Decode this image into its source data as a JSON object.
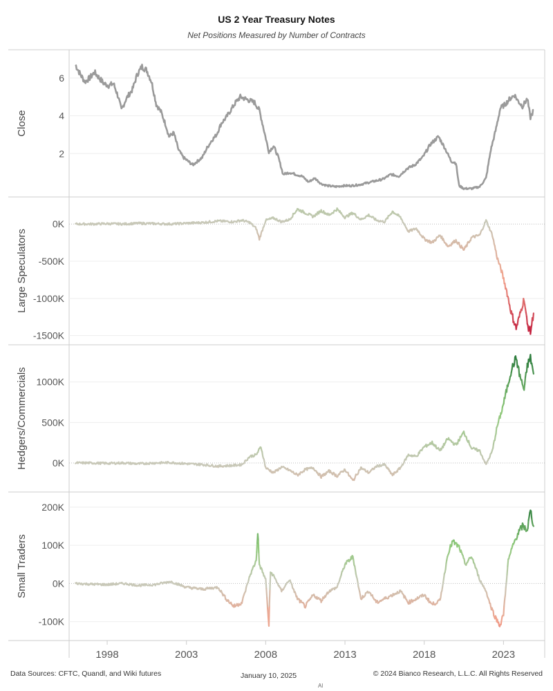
{
  "title": "US 2 Year Treasury Notes",
  "subtitle": "Net Positions Measured by Number of Contracts",
  "footer": {
    "sources": "Data Sources: CFTC, Quandl, and Wiki futures",
    "date": "January 10, 2025",
    "copyright": "© 2024 Bianco Research, L.L.C. All Rights Reserved",
    "mark": "Al"
  },
  "colors": {
    "close_line": "#9a9a9a",
    "neutral": "#c8c8b8",
    "positive_light": "#8fc97a",
    "positive_dark": "#2e7d3e",
    "negative_light": "#f2a28c",
    "negative_dark": "#c0193a",
    "grid": "#eeeeee",
    "border": "#cccccc"
  },
  "chart_data": {
    "type": "line",
    "x_tick_labels": [
      "1998",
      "2003",
      "2008",
      "2013",
      "2018",
      "2023"
    ],
    "x_ticks": [
      1998,
      2003,
      2008,
      2013,
      2018,
      2023
    ],
    "xlim": [
      1995.6,
      2025.6
    ],
    "panels": [
      {
        "ylabel": "Close",
        "color_mode": "fixed",
        "ylim": [
          0,
          7.2
        ],
        "y_ticks": [
          2,
          4,
          6
        ],
        "y_tick_labels": [
          "2",
          "4",
          "6"
        ],
        "series": [
          {
            "x": [
              1996.0,
              1996.3,
              1996.6,
              1996.9,
              1997.2,
              1997.5,
              1997.8,
              1998.1,
              1998.4,
              1998.7,
              1998.9,
              1999.2,
              1999.6,
              1999.9,
              2000.2,
              2000.5,
              2000.8,
              2001.1,
              2001.4,
              2001.7,
              2001.9,
              2002.2,
              2002.5,
              2002.8,
              2003.1,
              2003.4,
              2003.7,
              2004.0,
              2004.3,
              2004.6,
              2004.9,
              2005.2,
              2005.5,
              2005.8,
              2006.1,
              2006.4,
              2006.7,
              2007.0,
              2007.3,
              2007.6,
              2007.9,
              2008.2,
              2008.5,
              2008.8,
              2009.1,
              2009.5,
              2009.9,
              2010.3,
              2010.7,
              2011.1,
              2011.5,
              2011.9,
              2012.4,
              2012.9,
              2013.4,
              2013.9,
              2014.4,
              2014.9,
              2015.4,
              2015.9,
              2016.4,
              2016.9,
              2017.4,
              2017.9,
              2018.4,
              2018.9,
              2019.3,
              2019.7,
              2020.0,
              2020.2,
              2020.5,
              2021.0,
              2021.5,
              2021.9,
              2022.2,
              2022.5,
              2022.8,
              2023.1,
              2023.4,
              2023.7,
              2023.9,
              2024.2,
              2024.5,
              2024.7,
              2024.9
            ],
            "y": [
              6.7,
              6.2,
              5.8,
              6.0,
              6.3,
              6.0,
              5.7,
              5.6,
              5.7,
              5.0,
              4.3,
              4.9,
              5.4,
              6.2,
              6.6,
              6.4,
              5.8,
              4.6,
              4.2,
              3.5,
              2.9,
              3.1,
              2.2,
              1.8,
              1.6,
              1.4,
              1.6,
              1.8,
              2.3,
              2.7,
              3.0,
              3.6,
              3.9,
              4.3,
              4.7,
              5.0,
              4.9,
              4.8,
              4.7,
              4.3,
              3.2,
              2.1,
              2.4,
              1.8,
              0.9,
              1.0,
              0.9,
              0.8,
              0.5,
              0.7,
              0.4,
              0.3,
              0.25,
              0.3,
              0.3,
              0.35,
              0.45,
              0.55,
              0.65,
              0.9,
              0.8,
              1.2,
              1.4,
              1.8,
              2.5,
              2.9,
              2.3,
              1.6,
              1.5,
              0.3,
              0.15,
              0.15,
              0.25,
              0.7,
              2.2,
              3.2,
              4.4,
              4.6,
              4.9,
              5.1,
              4.8,
              4.5,
              4.9,
              3.9,
              4.3
            ]
          }
        ]
      },
      {
        "ylabel": "Large Speculators",
        "color_mode": "diverging",
        "color_scale": 1500000,
        "ylim": [
          -1550000,
          290000
        ],
        "y_ticks": [
          0,
          -500000,
          -1000000,
          -1500000
        ],
        "y_tick_labels": [
          "0K",
          "-500K",
          "-1000K",
          "-1500K"
        ],
        "series": [
          {
            "x": [
              1996.0,
              1997.0,
              1998.0,
              1999.0,
              2000.0,
              2001.0,
              2002.0,
              2003.0,
              2004.0,
              2005.0,
              2006.0,
              2006.5,
              2007.0,
              2007.4,
              2007.6,
              2008.0,
              2008.5,
              2009.0,
              2009.5,
              2010.0,
              2010.5,
              2011.0,
              2011.5,
              2012.0,
              2012.5,
              2013.0,
              2013.5,
              2014.0,
              2014.5,
              2015.0,
              2015.5,
              2016.0,
              2016.5,
              2017.0,
              2017.5,
              2018.0,
              2018.5,
              2019.0,
              2019.5,
              2020.0,
              2020.5,
              2021.0,
              2021.5,
              2021.9,
              2022.3,
              2022.6,
              2022.9,
              2023.2,
              2023.5,
              2023.8,
              2024.0,
              2024.3,
              2024.5,
              2024.7,
              2024.9
            ],
            "y": [
              0,
              0,
              5000,
              0,
              10000,
              5000,
              0,
              10000,
              20000,
              40000,
              30000,
              50000,
              20000,
              -60000,
              -200000,
              50000,
              80000,
              30000,
              60000,
              200000,
              150000,
              100000,
              180000,
              120000,
              200000,
              90000,
              150000,
              60000,
              120000,
              50000,
              30000,
              170000,
              90000,
              -100000,
              -60000,
              -200000,
              -250000,
              -150000,
              -300000,
              -220000,
              -350000,
              -180000,
              -150000,
              50000,
              -150000,
              -450000,
              -650000,
              -900000,
              -1200000,
              -1400000,
              -1250000,
              -1000000,
              -1350000,
              -1450000,
              -1200000
            ]
          }
        ]
      },
      {
        "ylabel": "Hedgers/Commercials",
        "color_mode": "diverging",
        "color_scale": 1300000,
        "ylim": [
          -290000,
          1390000
        ],
        "y_ticks": [
          0,
          500000,
          1000000
        ],
        "y_tick_labels": [
          "0K",
          "500K",
          "1000K"
        ],
        "series": [
          {
            "x": [
              1996.0,
              1997.0,
              1998.0,
              1999.0,
              2000.0,
              2001.0,
              2002.0,
              2003.0,
              2004.0,
              2005.0,
              2006.0,
              2006.5,
              2007.0,
              2007.4,
              2007.7,
              2008.0,
              2008.5,
              2009.0,
              2009.5,
              2010.0,
              2010.5,
              2011.0,
              2011.5,
              2012.0,
              2012.5,
              2013.0,
              2013.5,
              2014.0,
              2014.5,
              2015.0,
              2015.5,
              2016.0,
              2016.5,
              2017.0,
              2017.5,
              2018.0,
              2018.5,
              2019.0,
              2019.5,
              2020.0,
              2020.5,
              2021.0,
              2021.5,
              2021.9,
              2022.3,
              2022.6,
              2022.9,
              2023.2,
              2023.5,
              2023.8,
              2024.0,
              2024.3,
              2024.5,
              2024.7,
              2024.9
            ],
            "y": [
              0,
              0,
              -5000,
              0,
              -10000,
              0,
              5000,
              -10000,
              -20000,
              -40000,
              -30000,
              -20000,
              80000,
              100000,
              200000,
              -60000,
              -120000,
              -50000,
              -90000,
              -150000,
              -80000,
              -60000,
              -170000,
              -100000,
              -160000,
              -80000,
              -220000,
              -60000,
              -120000,
              -40000,
              -20000,
              -150000,
              -60000,
              100000,
              80000,
              200000,
              250000,
              150000,
              300000,
              220000,
              380000,
              180000,
              150000,
              -20000,
              150000,
              450000,
              650000,
              900000,
              1150000,
              1300000,
              1100000,
              900000,
              1200000,
              1300000,
              1100000
            ]
          }
        ]
      },
      {
        "ylabel": "Small Traders",
        "color_mode": "diverging",
        "color_scale": 200000,
        "ylim": [
          -135000,
          225000
        ],
        "y_ticks": [
          -100000,
          0,
          100000,
          200000
        ],
        "y_tick_labels": [
          "-100K",
          "0K",
          "100K",
          "200K"
        ],
        "series": [
          {
            "x": [
              1996.0,
              1997.0,
              1998.0,
              1999.0,
              2000.0,
              2001.0,
              2002.0,
              2003.0,
              2004.0,
              2005.0,
              2005.5,
              2006.0,
              2006.5,
              2007.0,
              2007.4,
              2007.5,
              2007.6,
              2008.0,
              2008.2,
              2008.3,
              2008.5,
              2009.0,
              2009.5,
              2010.0,
              2010.5,
              2011.0,
              2011.5,
              2012.0,
              2012.5,
              2013.0,
              2013.5,
              2014.0,
              2014.5,
              2015.0,
              2015.5,
              2016.0,
              2016.5,
              2017.0,
              2017.5,
              2018.0,
              2018.5,
              2019.0,
              2019.5,
              2019.8,
              2020.2,
              2020.6,
              2021.0,
              2021.5,
              2021.9,
              2022.2,
              2022.5,
              2022.8,
              2023.0,
              2023.3,
              2023.6,
              2023.9,
              2024.2,
              2024.5,
              2024.7,
              2024.9
            ],
            "y": [
              0,
              -2000,
              -3000,
              0,
              -5000,
              -3000,
              5000,
              -10000,
              -15000,
              -10000,
              -40000,
              -60000,
              -50000,
              20000,
              60000,
              135000,
              50000,
              10000,
              -110000,
              30000,
              20000,
              -20000,
              10000,
              -40000,
              -60000,
              -30000,
              -45000,
              -20000,
              -10000,
              50000,
              70000,
              -40000,
              -20000,
              -50000,
              -40000,
              -30000,
              -20000,
              -50000,
              -40000,
              -30000,
              -55000,
              -45000,
              80000,
              110000,
              95000,
              50000,
              70000,
              10000,
              -20000,
              -60000,
              -90000,
              -110000,
              -80000,
              60000,
              100000,
              130000,
              150000,
              140000,
              190000,
              150000
            ]
          }
        ]
      }
    ]
  }
}
